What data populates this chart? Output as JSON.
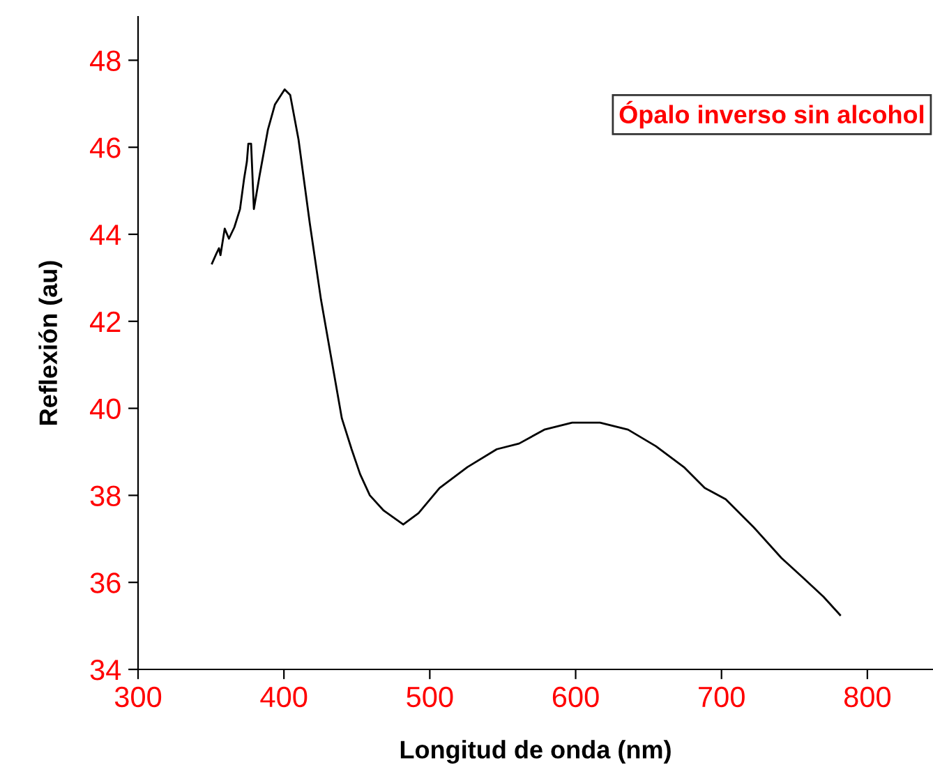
{
  "chart_data": {
    "type": "line",
    "xlabel": "Longitud de onda (nm)",
    "ylabel": "Reflexión (au)",
    "annotations": [
      "Ópalo inverso sin alcohol"
    ],
    "xlim": [
      300,
      845
    ],
    "ylim": [
      34,
      49
    ],
    "xticks": [
      300,
      400,
      500,
      600,
      700,
      800
    ],
    "yticks": [
      34,
      36,
      38,
      40,
      42,
      44,
      46,
      48
    ],
    "grid": false,
    "series": [
      {
        "color": "#000000",
        "x": [
          350.7,
          353.6,
          355.5,
          356.5,
          359.4,
          362.3,
          366,
          369.9,
          372.7,
          374.6,
          375.6,
          377.5,
          379.4,
          383.3,
          389,
          393.8,
          400.5,
          404.3,
          410,
          417.7,
          425.4,
          433,
          439.7,
          446.4,
          452.2,
          458.9,
          468.4,
          481.8,
          492.3,
          506.7,
          525.8,
          545.9,
          561.2,
          578.5,
          597.6,
          616.7,
          635.9,
          655,
          674.2,
          688.5,
          702.9,
          722,
          741.1,
          755.5,
          769.9,
          781.3
        ],
        "values": [
          43.33,
          43.55,
          43.68,
          43.52,
          44.13,
          43.9,
          44.16,
          44.58,
          45.28,
          45.67,
          46.08,
          46.08,
          44.58,
          45.35,
          46.4,
          46.98,
          47.33,
          47.2,
          46.18,
          44.26,
          42.5,
          41.05,
          39.77,
          39.06,
          38.49,
          38.0,
          37.65,
          37.33,
          37.59,
          38.17,
          38.65,
          39.06,
          39.19,
          39.51,
          39.67,
          39.67,
          39.51,
          39.13,
          38.65,
          38.17,
          37.91,
          37.27,
          36.56,
          36.12,
          35.67,
          35.25
        ]
      }
    ]
  }
}
